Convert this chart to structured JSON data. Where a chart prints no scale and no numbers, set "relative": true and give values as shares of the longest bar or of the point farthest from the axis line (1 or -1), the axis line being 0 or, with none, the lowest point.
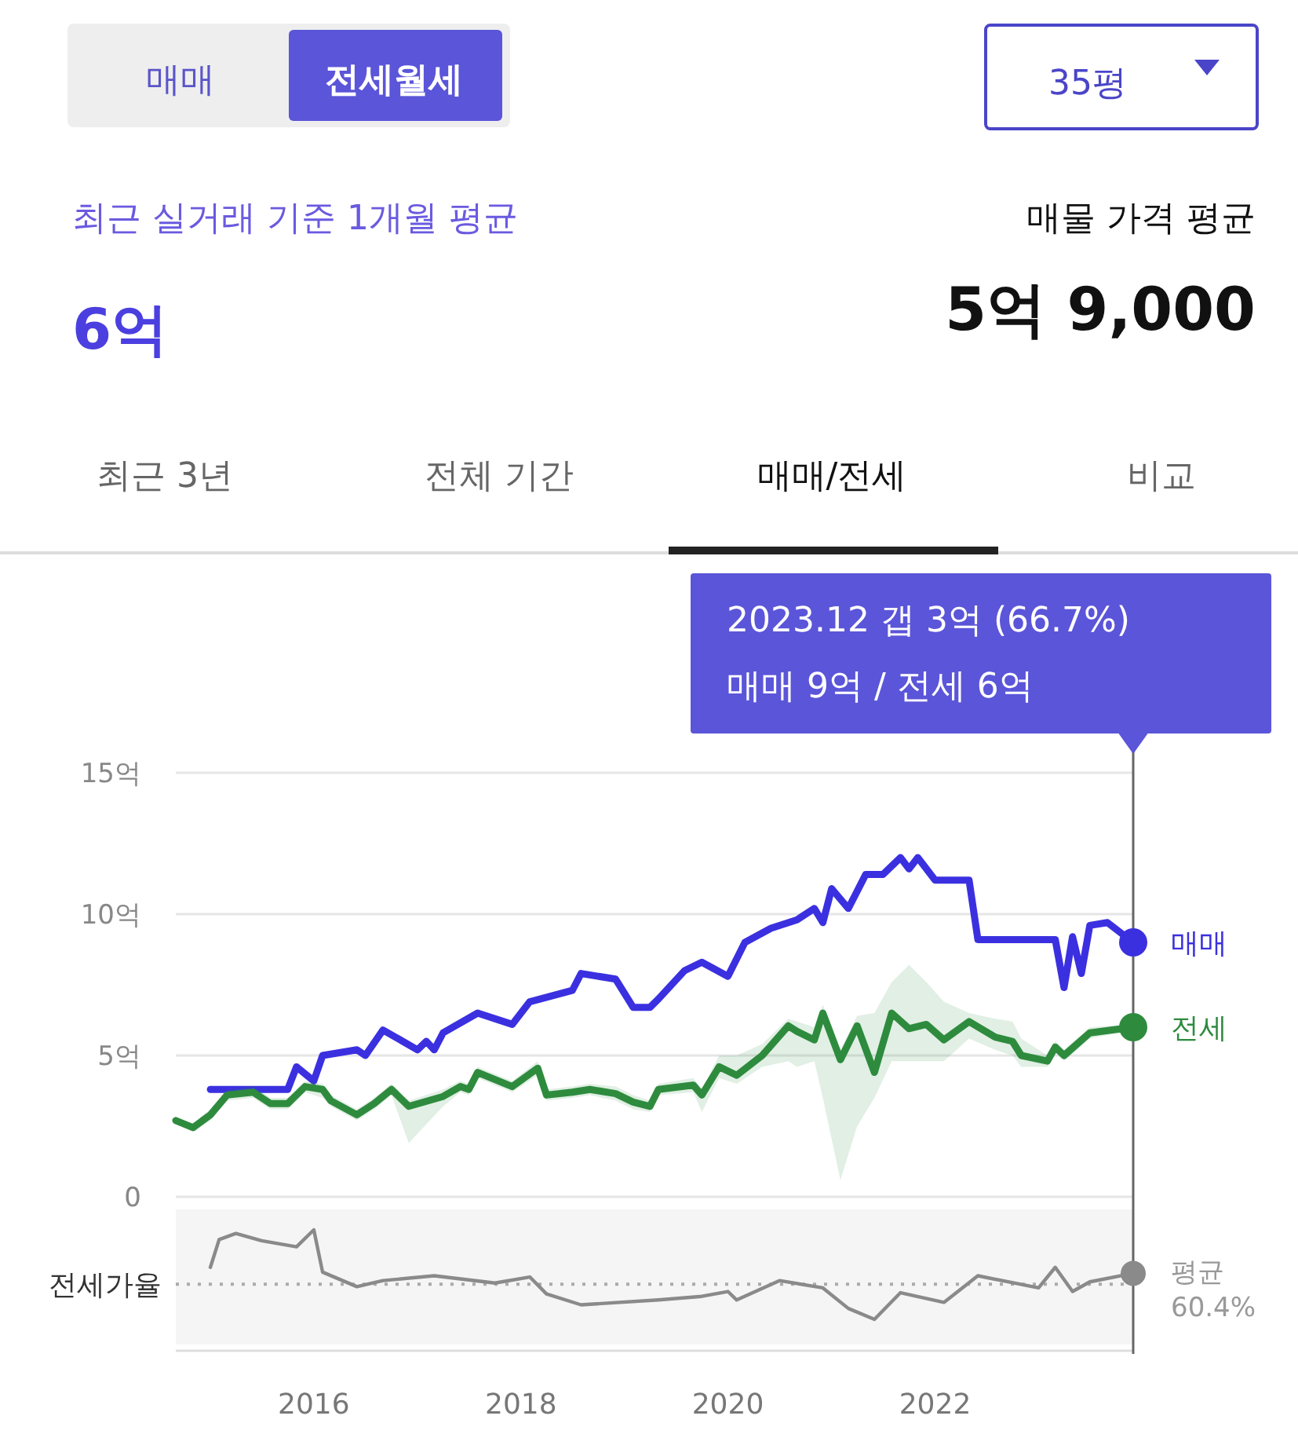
{
  "chart_data": [
    {
      "type": "other",
      "annotations": [
        "매매",
        "전세월세",
        "35평",
        "최근 실거래 기준 1개월 평균",
        "6억",
        "매물 가격 평균",
        "5억 9,000",
        "최근 3년",
        "전체 기간",
        "매매/전세",
        "비교"
      ]
    },
    {
      "type": "line",
      "xlim": [
        "2014-09",
        "2023-12"
      ],
      "ylim": [
        0,
        15
      ],
      "yticks": [
        0,
        {
          "value": 5,
          "label": "5억"
        },
        {
          "value": 10,
          "label": "10억"
        },
        {
          "value": 15,
          "label": "15억"
        }
      ],
      "grid": "y",
      "tick_labels": "y",
      "line_style": "solid",
      "annotations": [
        "2023.12  갭 3억 (66.7%)",
        "매매 9억 / 전세 6억"
      ],
      "ref_lines": [
        {
          "axis": "x",
          "value": "2023-12",
          "color": "#666666"
        }
      ],
      "series": [
        {
          "name": "매매",
          "color": "#3b30e0",
          "x": [
            "2015-01",
            "2015-10",
            "2015-11",
            "2016-01",
            "2016-02",
            "2016-06",
            "2016-07",
            "2016-09",
            "2017-01",
            "2017-02",
            "2017-03",
            "2017-04",
            "2017-08",
            "2017-12",
            "2018-02",
            "2018-07",
            "2018-08",
            "2018-12",
            "2019-02",
            "2019-04",
            "2019-05",
            "2019-08",
            "2019-10",
            "2020-01",
            "2020-03",
            "2020-06",
            "2020-09",
            "2020-11",
            "2020-12",
            "2021-01",
            "2021-03",
            "2021-05",
            "2021-07",
            "2021-09",
            "2021-10",
            "2021-11",
            "2022-01",
            "2022-05",
            "2022-06",
            "2023-03",
            "2023-04",
            "2023-05",
            "2023-06",
            "2023-07",
            "2023-09",
            "2023-12"
          ],
          "values": [
            3.8,
            3.8,
            4.6,
            4.1,
            5.0,
            5.2,
            5.0,
            5.9,
            5.2,
            5.5,
            5.2,
            5.8,
            6.5,
            6.1,
            6.9,
            7.3,
            7.9,
            7.7,
            6.7,
            6.7,
            7.0,
            8.0,
            8.3,
            7.8,
            9.0,
            9.5,
            9.8,
            10.2,
            9.7,
            10.9,
            10.2,
            11.4,
            11.4,
            12.0,
            11.6,
            12.0,
            11.2,
            11.2,
            9.1,
            9.1,
            7.4,
            9.2,
            7.9,
            9.6,
            9.7,
            9.0
          ]
        },
        {
          "name": "전세",
          "color": "#2e8b3e",
          "x": [
            "2014-09",
            "2014-11",
            "2015-01",
            "2015-03",
            "2015-06",
            "2015-08",
            "2015-10",
            "2015-12",
            "2016-02",
            "2016-03",
            "2016-06",
            "2016-08",
            "2016-10",
            "2016-12",
            "2017-04",
            "2017-06",
            "2017-07",
            "2017-08",
            "2017-12",
            "2018-03",
            "2018-04",
            "2018-07",
            "2018-09",
            "2018-12",
            "2019-02",
            "2019-04",
            "2019-05",
            "2019-09",
            "2019-10",
            "2019-12",
            "2020-02",
            "2020-05",
            "2020-08",
            "2020-09",
            "2020-11",
            "2020-12",
            "2021-02",
            "2021-04",
            "2021-06",
            "2021-08",
            "2021-10",
            "2021-12",
            "2022-02",
            "2022-05",
            "2022-08",
            "2022-10",
            "2022-11",
            "2023-02",
            "2023-03",
            "2023-04",
            "2023-07",
            "2023-12"
          ],
          "values": [
            2.7,
            2.45,
            2.9,
            3.6,
            3.7,
            3.3,
            3.3,
            3.9,
            3.8,
            3.4,
            2.9,
            3.3,
            3.8,
            3.2,
            3.55,
            3.9,
            3.8,
            4.4,
            3.9,
            4.55,
            3.6,
            3.7,
            3.8,
            3.65,
            3.35,
            3.2,
            3.8,
            3.95,
            3.6,
            4.6,
            4.3,
            5.0,
            6.05,
            5.85,
            5.55,
            6.5,
            4.85,
            6.05,
            4.4,
            6.5,
            5.95,
            6.1,
            5.55,
            6.2,
            5.65,
            5.5,
            5.0,
            4.8,
            5.3,
            5.0,
            5.8,
            6.0
          ],
          "lower": [
            2.6,
            2.3,
            2.7,
            3.4,
            3.5,
            3.1,
            3.1,
            3.7,
            3.5,
            3.2,
            2.7,
            3.1,
            3.6,
            1.9,
            3.2,
            3.7,
            3.6,
            4.2,
            3.7,
            4.3,
            3.4,
            3.5,
            3.6,
            3.4,
            3.1,
            3.0,
            3.6,
            3.7,
            3.0,
            4.2,
            4.0,
            4.6,
            4.8,
            4.6,
            4.8,
            3.5,
            0.6,
            2.5,
            3.5,
            4.8,
            4.8,
            4.8,
            4.8,
            5.6,
            5.2,
            5.0,
            4.6,
            4.6,
            5.1,
            4.8,
            5.6,
            5.9
          ],
          "upper": [
            2.8,
            2.6,
            3.1,
            3.8,
            3.9,
            3.5,
            3.5,
            4.1,
            4.0,
            3.6,
            3.1,
            3.5,
            4.0,
            3.4,
            3.8,
            4.1,
            4.0,
            4.6,
            4.1,
            4.8,
            3.8,
            3.9,
            4.0,
            3.9,
            3.6,
            3.4,
            4.0,
            4.2,
            3.8,
            5.0,
            5.0,
            5.4,
            6.3,
            6.2,
            6.0,
            6.8,
            5.2,
            6.4,
            6.5,
            7.6,
            8.2,
            7.6,
            6.9,
            6.5,
            6.3,
            6.2,
            5.6,
            5.0,
            5.5,
            5.2,
            6.0,
            6.1
          ]
        }
      ]
    },
    {
      "type": "line",
      "relative": true,
      "ylabel": "전세가율",
      "xlim": [
        "2014-09",
        "2023-12"
      ],
      "xticks": [
        "2016",
        "2018",
        "2020",
        "2022"
      ],
      "tick_labels": "x",
      "line_style": "solid",
      "ref_lines": [
        {
          "axis": "y",
          "value": 0.55,
          "label": "평균 60.4%",
          "line_style": "dotted",
          "color": "#aaaaaa"
        },
        {
          "axis": "x",
          "value": "2023-12",
          "color": "#666666"
        }
      ],
      "series": [
        {
          "color": "#8a8a8a",
          "x": [
            "2015-01",
            "2015-02",
            "2015-04",
            "2015-07",
            "2015-11",
            "2016-01",
            "2016-02",
            "2016-06",
            "2016-09",
            "2017-03",
            "2017-10",
            "2018-02",
            "2018-04",
            "2018-08",
            "2019-05",
            "2019-10",
            "2020-01",
            "2020-02",
            "2020-07",
            "2020-12",
            "2021-03",
            "2021-06",
            "2021-09",
            "2022-02",
            "2022-06",
            "2023-01",
            "2023-03",
            "2023-05",
            "2023-07",
            "2023-12"
          ],
          "values": [
            0.69,
            0.92,
            0.97,
            0.91,
            0.86,
            1.0,
            0.65,
            0.53,
            0.58,
            0.62,
            0.56,
            0.61,
            0.47,
            0.38,
            0.42,
            0.45,
            0.49,
            0.42,
            0.58,
            0.52,
            0.35,
            0.26,
            0.48,
            0.4,
            0.62,
            0.52,
            0.69,
            0.49,
            0.57,
            0.64
          ]
        }
      ]
    }
  ]
}
